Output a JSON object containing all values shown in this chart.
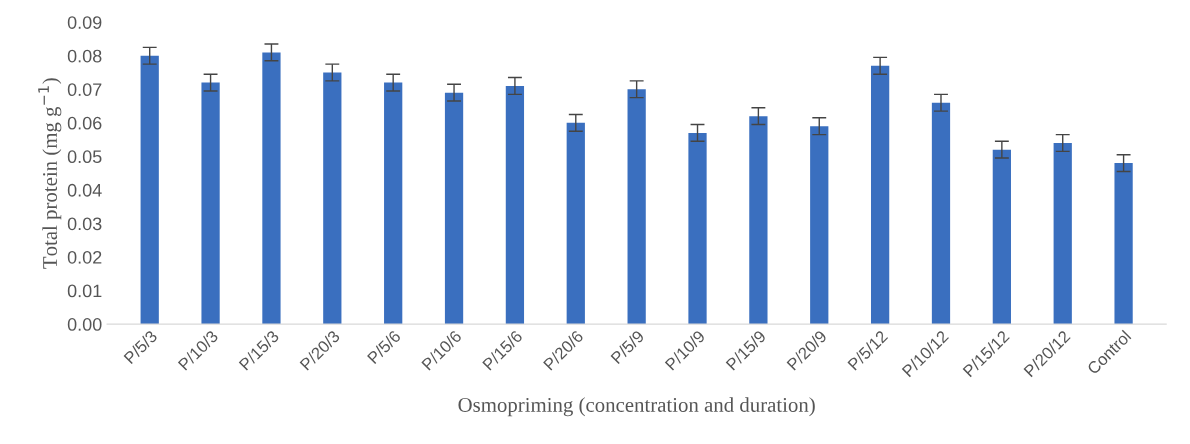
{
  "chart_data": {
    "type": "bar",
    "xlabel": "Osmopriming (concentration and duration)",
    "ylabel": "Total protein (mg g$^{−1}$)",
    "categories": [
      "P/5/3",
      "P/10/3",
      "P/15/3",
      "P/20/3",
      "P/5/6",
      "P/10/6",
      "P/15/6",
      "P/20/6",
      "P/5/9",
      "P/10/9",
      "P/15/9",
      "P/20/9",
      "P/5/12",
      "P/10/12",
      "P/15/12",
      "P/20/12",
      "Control"
    ],
    "values": [
      0.08,
      0.072,
      0.081,
      0.075,
      0.072,
      0.069,
      0.071,
      0.06,
      0.07,
      0.057,
      0.062,
      0.059,
      0.077,
      0.066,
      0.052,
      0.054,
      0.048
    ],
    "errors": [
      0.0025,
      0.0025,
      0.0025,
      0.0025,
      0.0025,
      0.0025,
      0.0025,
      0.0025,
      0.0025,
      0.0025,
      0.0025,
      0.0025,
      0.0025,
      0.0025,
      0.0025,
      0.0025,
      0.0025
    ],
    "color": "#3a6fbf",
    "ylim": [
      0,
      0.09
    ],
    "yticks": [
      {
        "value": 0,
        "label": "0.00"
      },
      {
        "value": 0.01,
        "label": "0.01"
      },
      {
        "value": 0.02,
        "label": "0.02"
      },
      {
        "value": 0.03,
        "label": "0.03"
      },
      {
        "value": 0.04,
        "label": "0.04"
      },
      {
        "value": 0.05,
        "label": "0.05"
      },
      {
        "value": 0.06,
        "label": "0.06"
      },
      {
        "value": 0.07,
        "label": "0.07"
      },
      {
        "value": 0.08,
        "label": "0.08"
      },
      {
        "value": 0.09,
        "label": "0.09"
      }
    ]
  }
}
